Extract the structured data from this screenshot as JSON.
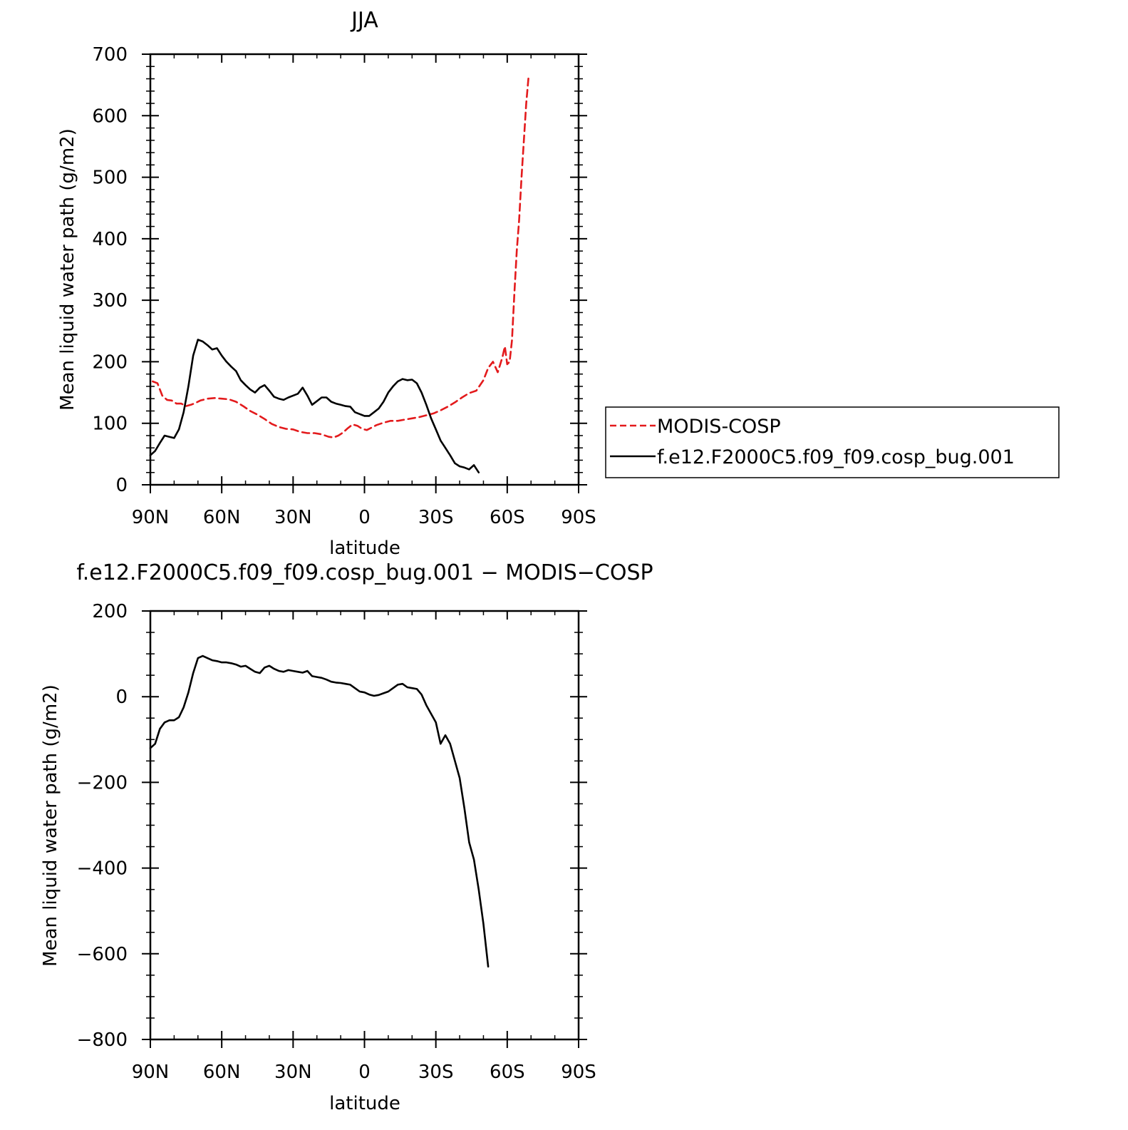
{
  "chart_data": [
    {
      "type": "line",
      "title": "JJA",
      "xlabel": "latitude",
      "ylabel": "Mean liquid water path (g/m2)",
      "xlim": [
        90,
        -90
      ],
      "ylim": [
        0,
        700
      ],
      "xticks": [
        90,
        60,
        30,
        0,
        -30,
        -60,
        -90
      ],
      "xtick_labels": [
        "90N",
        "60N",
        "30N",
        "0",
        "30S",
        "60S",
        "90S"
      ],
      "yticks": [
        0,
        100,
        200,
        300,
        400,
        500,
        600,
        700
      ],
      "ytick_labels": [
        "0",
        "100",
        "200",
        "300",
        "400",
        "500",
        "600",
        "700"
      ],
      "grid": false,
      "legend": "right",
      "series": [
        {
          "name": "MODIS-COSP",
          "color": "#e31a1c",
          "dash": "dashed",
          "x": [
            89,
            87,
            85,
            83,
            81,
            79,
            77,
            75,
            73,
            71,
            69,
            66,
            63,
            60,
            57,
            54,
            51,
            48,
            45,
            42,
            39,
            36,
            33,
            30,
            27,
            24,
            21,
            18,
            15,
            13,
            11,
            9,
            7,
            5,
            3,
            1,
            -1,
            -3,
            -5,
            -8,
            -11,
            -14,
            -17,
            -20,
            -23,
            -26,
            -29,
            -32,
            -35,
            -38,
            -41,
            -44,
            -47,
            -50,
            -52,
            -54,
            -56,
            -57,
            -58,
            -59,
            -60,
            -61,
            -62,
            -63,
            -64,
            -65,
            -66,
            -67,
            -68,
            -69,
            -70,
            -71,
            -72
          ],
          "y": [
            168,
            165,
            145,
            138,
            137,
            132,
            132,
            128,
            130,
            133,
            137,
            140,
            141,
            140,
            139,
            135,
            128,
            120,
            114,
            107,
            99,
            94,
            91,
            90,
            86,
            84,
            84,
            82,
            78,
            77,
            80,
            85,
            92,
            98,
            96,
            91,
            89,
            93,
            97,
            101,
            104,
            104,
            106,
            108,
            110,
            113,
            116,
            121,
            127,
            134,
            142,
            149,
            153,
            170,
            190,
            200,
            183,
            195,
            208,
            225,
            196,
            200,
            235,
            310,
            380,
            430,
            500,
            560,
            620,
            665,
            null,
            null,
            null
          ]
        },
        {
          "name": "f.e12.F2000C5.f09_f09.cosp_bug.001",
          "color": "#000000",
          "dash": "solid",
          "x": [
            90,
            88,
            86,
            84,
            82,
            80,
            78,
            76,
            74,
            72,
            70,
            68,
            66,
            64,
            62,
            60,
            58,
            56,
            54,
            52,
            50,
            48,
            46,
            44,
            42,
            40,
            38,
            36,
            34,
            32,
            30,
            28,
            26,
            24,
            22,
            20,
            18,
            16,
            14,
            12,
            10,
            8,
            6,
            4,
            2,
            0,
            -2,
            -4,
            -6,
            -8,
            -10,
            -12,
            -14,
            -16,
            -18,
            -20,
            -22,
            -24,
            -26,
            -28,
            -30,
            -32,
            -34,
            -36,
            -38,
            -40,
            -42,
            -44,
            -46,
            -48,
            -50,
            -52,
            -54,
            -56,
            -58,
            -60,
            -62,
            -64,
            -66,
            -68,
            -70,
            -72,
            -74,
            -76
          ],
          "y": [
            48,
            55,
            68,
            80,
            78,
            76,
            90,
            118,
            160,
            210,
            236,
            233,
            227,
            220,
            222,
            210,
            200,
            192,
            185,
            170,
            162,
            155,
            150,
            158,
            162,
            153,
            143,
            140,
            138,
            142,
            145,
            148,
            158,
            145,
            130,
            136,
            142,
            142,
            135,
            132,
            130,
            128,
            127,
            118,
            115,
            112,
            112,
            118,
            124,
            135,
            150,
            160,
            168,
            172,
            170,
            171,
            165,
            150,
            130,
            108,
            90,
            72,
            60,
            48,
            35,
            30,
            28,
            25,
            32,
            20,
            null,
            null,
            null,
            null,
            null,
            null,
            null,
            null,
            null,
            null,
            null,
            null,
            null,
            null
          ]
        }
      ]
    },
    {
      "type": "line",
      "title": "f.e12.F2000C5.f09_f09.cosp_bug.001 − MODIS−COSP",
      "xlabel": "latitude",
      "ylabel": "Mean liquid water path (g/m2)",
      "xlim": [
        90,
        -90
      ],
      "ylim": [
        -800,
        200
      ],
      "xticks": [
        90,
        60,
        30,
        0,
        -30,
        -60,
        -90
      ],
      "xtick_labels": [
        "90N",
        "60N",
        "30N",
        "0",
        "30S",
        "60S",
        "90S"
      ],
      "yticks": [
        -800,
        -600,
        -400,
        -200,
        0,
        200
      ],
      "ytick_labels": [
        "−800",
        "−600",
        "−400",
        "−200",
        "0",
        "200"
      ],
      "grid": false,
      "series": [
        {
          "name": "",
          "color": "#000000",
          "dash": "solid",
          "x": [
            90,
            88,
            86,
            84,
            82,
            80,
            78,
            76,
            74,
            72,
            70,
            68,
            66,
            64,
            62,
            60,
            58,
            56,
            54,
            52,
            50,
            48,
            46,
            44,
            42,
            40,
            38,
            36,
            34,
            32,
            30,
            28,
            26,
            24,
            22,
            20,
            18,
            16,
            14,
            12,
            10,
            8,
            6,
            4,
            2,
            0,
            -2,
            -4,
            -6,
            -8,
            -10,
            -12,
            -14,
            -16,
            -18,
            -20,
            -22,
            -24,
            -26,
            -28,
            -30,
            -32,
            -34,
            -36,
            -38,
            -40,
            -42,
            -44,
            -46,
            -48,
            -50,
            -52,
            -54,
            -56,
            -58,
            -59,
            -60,
            -61,
            -62,
            -63,
            -64,
            -65,
            -66,
            -67,
            -68,
            -69,
            -70,
            -71,
            -72
          ],
          "y": [
            -120,
            -110,
            -75,
            -60,
            -55,
            -55,
            -48,
            -25,
            10,
            55,
            90,
            95,
            90,
            85,
            83,
            80,
            80,
            78,
            75,
            70,
            72,
            65,
            58,
            55,
            68,
            72,
            65,
            60,
            58,
            62,
            60,
            58,
            56,
            60,
            48,
            46,
            44,
            40,
            35,
            33,
            32,
            30,
            28,
            20,
            12,
            10,
            5,
            2,
            4,
            8,
            12,
            20,
            28,
            30,
            22,
            20,
            18,
            5,
            -20,
            -40,
            -60,
            -110,
            -90,
            -110,
            -150,
            -190,
            -260,
            -340,
            -380,
            -450,
            -530,
            -630,
            null,
            null,
            null,
            null,
            null,
            null,
            null,
            null,
            null,
            null,
            null,
            null,
            null,
            null,
            null,
            null,
            null
          ]
        }
      ]
    }
  ]
}
